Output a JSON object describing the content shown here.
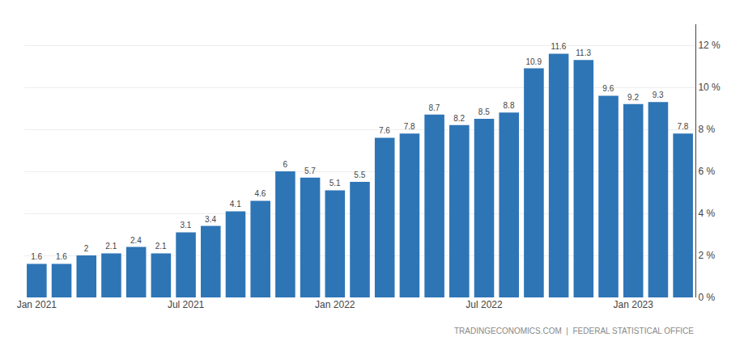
{
  "chart_data": {
    "type": "bar",
    "categories": [
      "Jan 2021",
      null,
      null,
      null,
      null,
      null,
      "Jul 2021",
      null,
      null,
      null,
      null,
      null,
      "Jan 2022",
      null,
      null,
      null,
      null,
      null,
      "Jul 2022",
      null,
      null,
      null,
      null,
      null,
      "Jan 2023",
      null,
      null
    ],
    "values": [
      1.6,
      1.6,
      2.0,
      2.1,
      2.4,
      2.1,
      3.1,
      3.4,
      4.1,
      4.6,
      6.0,
      5.7,
      5.1,
      5.5,
      7.6,
      7.8,
      8.7,
      8.2,
      8.5,
      8.8,
      10.9,
      11.6,
      11.3,
      9.6,
      9.2,
      9.3,
      7.8
    ],
    "color": "#2e75b6",
    "data_labels": true,
    "ylim": [
      0,
      13
    ],
    "yticks": [
      {
        "value": 0,
        "label": "0 %"
      },
      {
        "value": 2,
        "label": "2 %"
      },
      {
        "value": 4,
        "label": "4 %"
      },
      {
        "value": 6,
        "label": "6 %"
      },
      {
        "value": 8,
        "label": "8 %"
      },
      {
        "value": 10,
        "label": "10 %"
      },
      {
        "value": 12,
        "label": "12 %"
      }
    ],
    "grid": true,
    "annotations": [
      "TRADINGECONOMICS.COM  |  FEDERAL STATISTICAL OFFICE"
    ]
  }
}
